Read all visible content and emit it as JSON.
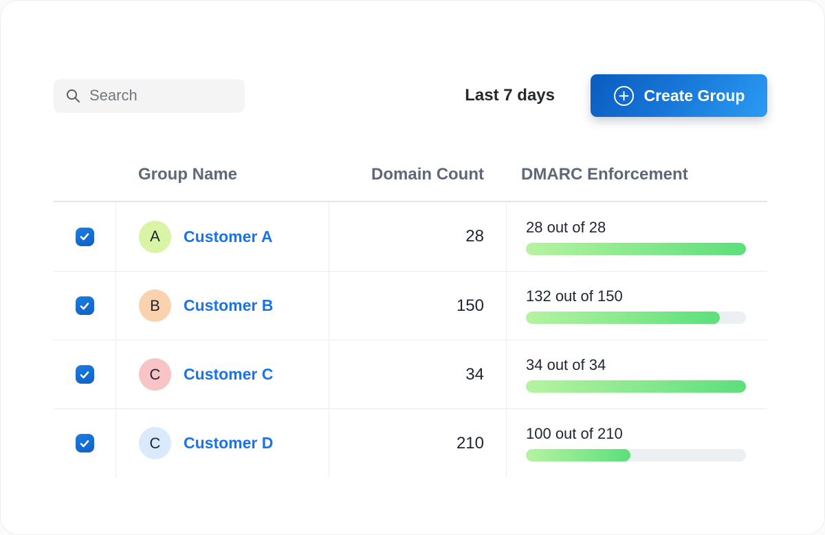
{
  "toolbar": {
    "search_placeholder": "Search",
    "date_range_label": "Last 7 days",
    "create_group_label": "Create Group"
  },
  "colors": {
    "accent_blue": "#1a73e8",
    "button_gradient_start": "#0a5cc0",
    "button_gradient_end": "#2b9bf4",
    "progress_gradient_start": "#b6f3a1",
    "progress_gradient_end": "#5cdf7b",
    "progress_track": "#edf0f3",
    "checkbox_blue": "#1470d1"
  },
  "table": {
    "columns": {
      "group_name": "Group Name",
      "domain_count": "Domain Count",
      "dmarc_enforcement": "DMARC Enforcement"
    },
    "rows": [
      {
        "checked": true,
        "avatar_letter": "A",
        "avatar_color": "#d9f4a5",
        "name": "Customer A",
        "domain_count": "28",
        "dmarc_label": "28 out of 28",
        "enforced": 28,
        "total": 28
      },
      {
        "checked": true,
        "avatar_letter": "B",
        "avatar_color": "#fad2ae",
        "name": "Customer B",
        "domain_count": "150",
        "dmarc_label": "132 out of 150",
        "enforced": 132,
        "total": 150
      },
      {
        "checked": true,
        "avatar_letter": "C",
        "avatar_color": "#f9c4c6",
        "name": "Customer C",
        "domain_count": "34",
        "dmarc_label": "34 out of 34",
        "enforced": 34,
        "total": 34
      },
      {
        "checked": true,
        "avatar_letter": "C",
        "avatar_color": "#daeafc",
        "name": "Customer D",
        "domain_count": "210",
        "dmarc_label": "100 out of 210",
        "enforced": 100,
        "total": 210
      }
    ]
  }
}
